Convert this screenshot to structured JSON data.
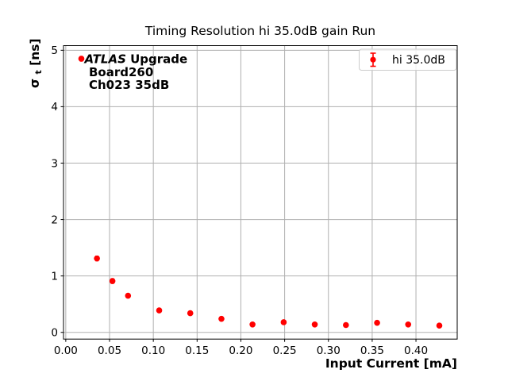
{
  "accent_color": "#ff0000",
  "grid_color": "#b0b0b0",
  "spine_color": "#000000",
  "legend_edge_color": "#cccccc",
  "chart_data": {
    "type": "scatter",
    "title": "Timing Resolution hi 35.0dB gain Run",
    "xlabel": "Input Current [mA]",
    "ylabel": {
      "sigma": "σ",
      "sub": "t",
      "units": " [ns]"
    },
    "legend": {
      "label": "hi 35.0dB",
      "position": "upper right"
    },
    "annotation": {
      "line1_italic": "ATLAS",
      "line1_rest": " Upgrade",
      "line2": "Board260",
      "line3": "Ch023 35dB"
    },
    "grid": true,
    "xlim": [
      -0.0026,
      0.4471
    ],
    "ylim": [
      -0.119,
      5.082
    ],
    "x_tick_values": [
      0.0,
      0.05,
      0.1,
      0.15,
      0.2,
      0.25,
      0.3,
      0.35,
      0.4
    ],
    "x_tick_labels": [
      "0.00",
      "0.05",
      "0.10",
      "0.15",
      "0.20",
      "0.25",
      "0.30",
      "0.35",
      "0.40"
    ],
    "y_tick_values": [
      0,
      1,
      2,
      3,
      4,
      5
    ],
    "y_tick_labels": [
      "0",
      "1",
      "2",
      "3",
      "4",
      "5"
    ],
    "series": [
      {
        "name": "hi 35.0dB",
        "color": "#ff0000",
        "marker": "circle",
        "x": [
          0.0178,
          0.0356,
          0.0533,
          0.0711,
          0.1067,
          0.1422,
          0.1778,
          0.2133,
          0.2489,
          0.2844,
          0.32,
          0.3556,
          0.3911,
          0.4267
        ],
        "y": [
          4.85,
          1.31,
          0.91,
          0.65,
          0.39,
          0.34,
          0.24,
          0.14,
          0.18,
          0.14,
          0.13,
          0.17,
          0.14,
          0.12
        ],
        "yerr": [
          0.04,
          0.04,
          0.04,
          0.03,
          0.03,
          0.03,
          0.03,
          0.02,
          0.02,
          0.02,
          0.02,
          0.02,
          0.02,
          0.02
        ]
      }
    ]
  }
}
